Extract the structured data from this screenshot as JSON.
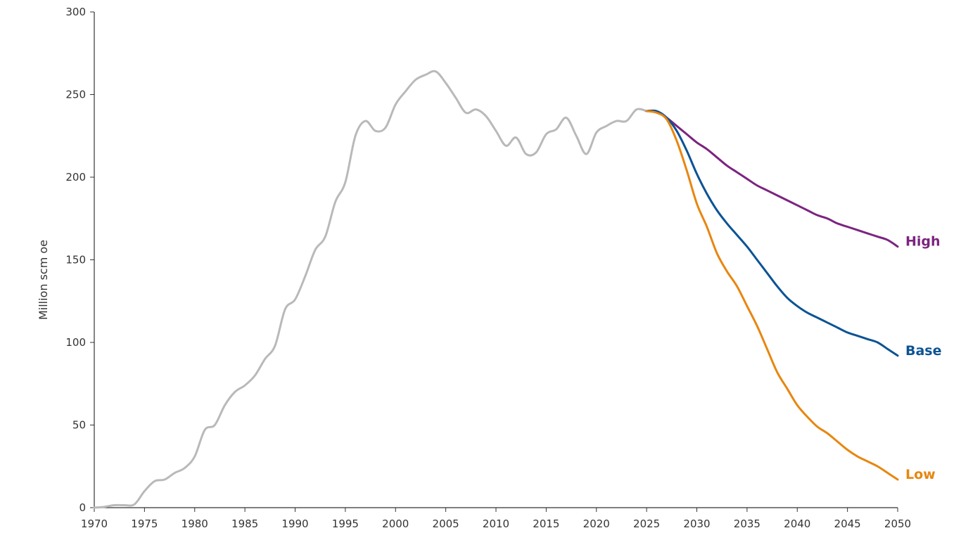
{
  "chart_data": {
    "type": "line",
    "title": "",
    "xlabel": "",
    "ylabel": "Million scm oe",
    "xlim": [
      1970,
      2050
    ],
    "ylim": [
      0,
      300
    ],
    "x_ticks": [
      1970,
      1975,
      1980,
      1985,
      1990,
      1995,
      2000,
      2005,
      2010,
      2015,
      2020,
      2025,
      2030,
      2035,
      2040,
      2045,
      2050
    ],
    "y_ticks": [
      0,
      50,
      100,
      150,
      200,
      250,
      300
    ],
    "grid": false,
    "legend": "none",
    "series": [
      {
        "name": "",
        "color": "#b9b9b9",
        "label_shown": false,
        "x": [
          1970,
          1971,
          1972,
          1973,
          1974,
          1975,
          1976,
          1977,
          1978,
          1979,
          1980,
          1981,
          1982,
          1983,
          1984,
          1985,
          1986,
          1987,
          1988,
          1989,
          1990,
          1991,
          1992,
          1993,
          1994,
          1995,
          1996,
          1997,
          1998,
          1999,
          2000,
          2001,
          2002,
          2003,
          2004,
          2005,
          2006,
          2007,
          2008,
          2009,
          2010,
          2011,
          2012,
          2013,
          2014,
          2015,
          2016,
          2017,
          2018,
          2019,
          2020,
          2021,
          2022,
          2023,
          2024,
          2025
        ],
        "y": [
          0,
          0.5,
          1.5,
          1.5,
          2,
          10,
          16,
          17,
          21,
          24,
          31,
          47,
          50,
          62,
          70,
          74,
          80,
          90,
          98,
          120,
          126,
          140,
          156,
          164,
          185,
          197,
          225,
          234,
          228,
          230,
          244,
          252,
          259,
          262,
          264,
          257,
          248,
          239,
          241,
          237,
          228,
          219,
          224,
          214,
          215,
          226,
          229,
          236,
          225,
          214,
          227,
          231,
          234,
          234,
          241,
          240
        ]
      },
      {
        "name": "High",
        "color": "#7b2480",
        "label_shown": true,
        "x": [
          2025,
          2026,
          2027,
          2028,
          2029,
          2030,
          2031,
          2032,
          2033,
          2034,
          2035,
          2036,
          2037,
          2038,
          2039,
          2040,
          2041,
          2042,
          2043,
          2044,
          2045,
          2046,
          2047,
          2048,
          2049,
          2050
        ],
        "y": [
          240,
          240,
          236,
          231,
          226,
          221,
          217,
          212,
          207,
          203,
          199,
          195,
          192,
          189,
          186,
          183,
          180,
          177,
          175,
          172,
          170,
          168,
          166,
          164,
          162,
          158
        ]
      },
      {
        "name": "Base",
        "color": "#0b5394",
        "label_shown": true,
        "x": [
          2025,
          2026,
          2027,
          2028,
          2029,
          2030,
          2031,
          2032,
          2033,
          2034,
          2035,
          2036,
          2037,
          2038,
          2039,
          2040,
          2041,
          2042,
          2043,
          2044,
          2045,
          2046,
          2047,
          2048,
          2049,
          2050
        ],
        "y": [
          240,
          240,
          236,
          228,
          216,
          202,
          190,
          180,
          172,
          165,
          158,
          150,
          142,
          134,
          127,
          122,
          118,
          115,
          112,
          109,
          106,
          104,
          102,
          100,
          96,
          92
        ]
      },
      {
        "name": "Low",
        "color": "#e8860f",
        "label_shown": true,
        "x": [
          2025,
          2026,
          2027,
          2028,
          2029,
          2030,
          2031,
          2032,
          2033,
          2034,
          2035,
          2036,
          2037,
          2038,
          2039,
          2040,
          2041,
          2042,
          2043,
          2044,
          2045,
          2046,
          2047,
          2048,
          2049,
          2050
        ],
        "y": [
          240,
          239,
          235,
          222,
          204,
          184,
          170,
          154,
          143,
          134,
          122,
          110,
          96,
          82,
          72,
          62,
          55,
          49,
          45,
          40,
          35,
          31,
          28,
          25,
          21,
          17
        ]
      }
    ]
  }
}
